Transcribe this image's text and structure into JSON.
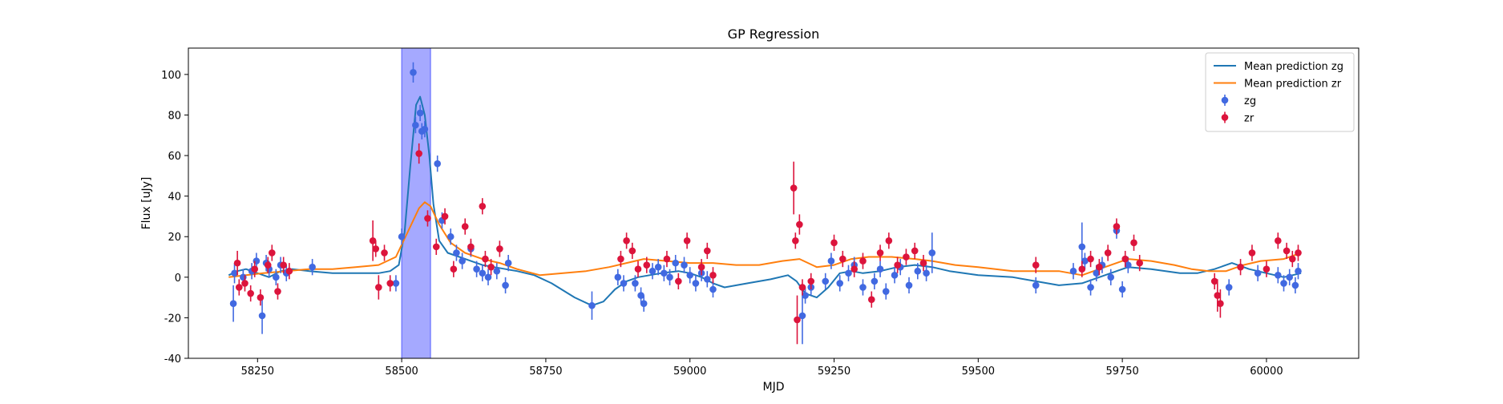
{
  "chart_data": {
    "type": "scatter",
    "title": "GP Regression",
    "xlabel": "MJD",
    "ylabel": "Flux [uJy]",
    "xlim": [
      58130,
      60160
    ],
    "ylim": [
      -40,
      113
    ],
    "xticks": [
      58250,
      58500,
      58750,
      59000,
      59250,
      59500,
      59750,
      60000
    ],
    "yticks": [
      -40,
      -20,
      0,
      20,
      40,
      60,
      80,
      100
    ],
    "grid": false,
    "legend_position": "top-right",
    "highlight_span": {
      "x_start": 58500,
      "x_end": 58550,
      "color": "#a0a4ff"
    },
    "series": [
      {
        "name": "Mean prediction zg",
        "kind": "line",
        "color": "#1f77b4",
        "x": [
          58200,
          58215,
          58230,
          58250,
          58270,
          58290,
          58310,
          58340,
          58380,
          58420,
          58460,
          58480,
          58495,
          58505,
          58515,
          58525,
          58532,
          58540,
          58548,
          58555,
          58565,
          58580,
          58600,
          58620,
          58640,
          58660,
          58680,
          58700,
          58730,
          58760,
          58800,
          58830,
          58850,
          58870,
          58890,
          58910,
          58930,
          58950,
          58980,
          59000,
          59020,
          59040,
          59060,
          59100,
          59140,
          59170,
          59185,
          59200,
          59220,
          59240,
          59260,
          59280,
          59300,
          59330,
          59360,
          59390,
          59420,
          59450,
          59500,
          59560,
          59600,
          59640,
          59680,
          59720,
          59760,
          59800,
          59850,
          59880,
          59910,
          59940,
          59970,
          60000,
          60030,
          60060
        ],
        "y": [
          1,
          3,
          4,
          2,
          0,
          3,
          4,
          3,
          2,
          2,
          2,
          3,
          6,
          22,
          55,
          85,
          89,
          80,
          60,
          36,
          18,
          12,
          10,
          8,
          6,
          5,
          4,
          3,
          1,
          -3,
          -10,
          -14,
          -12,
          -6,
          -2,
          0,
          1,
          2,
          3,
          2,
          0,
          -3,
          -5,
          -3,
          -1,
          1,
          -2,
          -8,
          -10,
          -5,
          2,
          3,
          2,
          3,
          5,
          6,
          5,
          3,
          1,
          0,
          -2,
          -4,
          -3,
          1,
          5,
          4,
          2,
          2,
          4,
          7,
          4,
          2,
          0,
          2
        ]
      },
      {
        "name": "Mean prediction zr",
        "kind": "line",
        "color": "#ff7f0e",
        "x": [
          58200,
          58230,
          58260,
          58300,
          58340,
          58380,
          58420,
          58460,
          58490,
          58510,
          58530,
          58540,
          58550,
          58565,
          58585,
          58610,
          58640,
          58670,
          58700,
          58740,
          58780,
          58820,
          58860,
          58890,
          58920,
          58960,
          59000,
          59040,
          59080,
          59120,
          59160,
          59190,
          59220,
          59250,
          59280,
          59310,
          59350,
          59390,
          59420,
          59460,
          59500,
          59560,
          59600,
          59640,
          59680,
          59720,
          59760,
          59800,
          59840,
          59870,
          59900,
          59930,
          59960,
          59990,
          60030,
          60060
        ],
        "y": [
          0,
          1,
          2,
          3,
          4,
          4,
          5,
          6,
          10,
          22,
          34,
          37,
          35,
          26,
          17,
          12,
          9,
          7,
          4,
          1,
          2,
          3,
          5,
          7,
          9,
          8,
          7,
          7,
          6,
          6,
          8,
          9,
          5,
          6,
          9,
          10,
          10,
          9,
          8,
          6,
          5,
          3,
          3,
          3,
          1,
          5,
          9,
          8,
          6,
          4,
          3,
          3,
          6,
          8,
          9,
          12
        ]
      },
      {
        "name": "zg",
        "kind": "errorbar",
        "color": "#4169e1",
        "x": [
          58208,
          58210,
          58225,
          58240,
          58248,
          58258,
          58265,
          58270,
          58282,
          58290,
          58300,
          58345,
          58490,
          58500,
          58520,
          58524,
          58532,
          58535,
          58540,
          58562,
          58570,
          58585,
          58595,
          58605,
          58620,
          58630,
          58640,
          58650,
          58665,
          58680,
          58685,
          58830,
          58875,
          58885,
          58905,
          58915,
          58920,
          58935,
          58945,
          58955,
          58965,
          58975,
          58990,
          59000,
          59010,
          59020,
          59030,
          59040,
          59195,
          59200,
          59210,
          59235,
          59245,
          59260,
          59275,
          59285,
          59300,
          59320,
          59330,
          59340,
          59355,
          59365,
          59380,
          59395,
          59410,
          59420,
          59600,
          59665,
          59680,
          59685,
          59695,
          59705,
          59715,
          59730,
          59740,
          59750,
          59760,
          59935,
          59985,
          60020,
          60030,
          60040,
          60050,
          60055
        ],
        "y": [
          -13,
          2,
          0,
          3,
          8,
          -19,
          7,
          4,
          0,
          6,
          2,
          5,
          -3,
          20,
          101,
          75,
          81,
          72,
          73,
          56,
          28,
          20,
          12,
          8,
          14,
          4,
          2,
          0,
          3,
          -4,
          7,
          -14,
          0,
          -3,
          -3,
          -9,
          -13,
          3,
          5,
          2,
          0,
          7,
          6,
          1,
          -3,
          2,
          -1,
          -6,
          -19,
          -9,
          -5,
          -2,
          8,
          -3,
          2,
          6,
          -5,
          -2,
          4,
          -7,
          1,
          5,
          -4,
          3,
          2,
          12,
          -4,
          3,
          15,
          8,
          -5,
          2,
          6,
          0,
          23,
          -6,
          6,
          -5,
          2,
          1,
          -3,
          0,
          -4,
          3
        ],
        "yerr": [
          9,
          5,
          4,
          4,
          4,
          9,
          4,
          4,
          4,
          4,
          4,
          4,
          4,
          4,
          5,
          4,
          4,
          4,
          4,
          4,
          4,
          4,
          4,
          4,
          4,
          4,
          4,
          4,
          4,
          4,
          4,
          7,
          4,
          4,
          4,
          4,
          4,
          4,
          4,
          4,
          4,
          4,
          4,
          4,
          4,
          4,
          4,
          4,
          14,
          4,
          4,
          4,
          4,
          4,
          4,
          4,
          4,
          4,
          4,
          4,
          4,
          4,
          4,
          4,
          4,
          10,
          4,
          4,
          12,
          4,
          4,
          4,
          4,
          4,
          4,
          4,
          4,
          4,
          4,
          4,
          4,
          4,
          4,
          4
        ]
      },
      {
        "name": "zr",
        "kind": "errorbar",
        "color": "#dc143c",
        "x": [
          58215,
          58218,
          58228,
          58238,
          58245,
          58255,
          58268,
          58275,
          58285,
          58295,
          58305,
          58450,
          58455,
          58460,
          58470,
          58480,
          58530,
          58545,
          58560,
          58575,
          58590,
          58610,
          58620,
          58640,
          58645,
          58655,
          58670,
          58880,
          58890,
          58900,
          58910,
          58925,
          58960,
          58980,
          58995,
          59020,
          59030,
          59040,
          59180,
          59183,
          59186,
          59190,
          59195,
          59210,
          59250,
          59265,
          59285,
          59300,
          59315,
          59330,
          59345,
          59360,
          59375,
          59390,
          59405,
          59600,
          59680,
          59695,
          59710,
          59725,
          59740,
          59755,
          59770,
          59780,
          59910,
          59915,
          59920,
          59955,
          59975,
          60000,
          60020,
          60035,
          60045,
          60055
        ],
        "y": [
          7,
          -5,
          -3,
          -8,
          4,
          -10,
          6,
          12,
          -7,
          6,
          3,
          18,
          14,
          -5,
          12,
          -3,
          61,
          29,
          15,
          30,
          4,
          25,
          15,
          35,
          9,
          5,
          14,
          9,
          18,
          13,
          4,
          6,
          9,
          -2,
          18,
          5,
          13,
          1,
          44,
          18,
          -21,
          26,
          -5,
          -2,
          17,
          9,
          4,
          8,
          -11,
          12,
          18,
          6,
          10,
          13,
          7,
          6,
          4,
          9,
          5,
          12,
          25,
          9,
          17,
          7,
          -2,
          -9,
          -13,
          5,
          12,
          4,
          18,
          13,
          9,
          12
        ],
        "yerr": [
          6,
          4,
          4,
          4,
          4,
          4,
          4,
          4,
          4,
          4,
          4,
          10,
          4,
          6,
          4,
          4,
          5,
          4,
          4,
          4,
          4,
          4,
          4,
          4,
          4,
          4,
          4,
          4,
          4,
          4,
          4,
          4,
          4,
          4,
          4,
          4,
          4,
          4,
          13,
          4,
          12,
          5,
          4,
          4,
          4,
          4,
          4,
          4,
          4,
          4,
          4,
          4,
          4,
          4,
          4,
          4,
          4,
          4,
          4,
          4,
          4,
          4,
          4,
          4,
          4,
          8,
          7,
          4,
          4,
          4,
          4,
          4,
          4,
          4
        ]
      }
    ]
  }
}
